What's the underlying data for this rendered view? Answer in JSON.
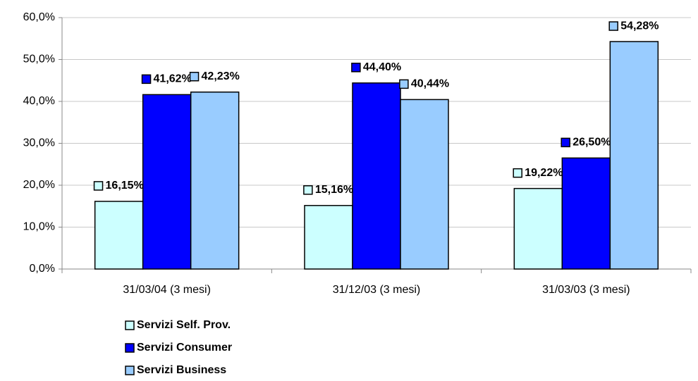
{
  "chart_data": {
    "type": "bar",
    "categories": [
      "31/03/04 (3 mesi)",
      "31/12/03 (3 mesi)",
      "31/03/03 (3 mesi)"
    ],
    "series": [
      {
        "name": "Servizi Self. Prov.",
        "color": "#ccffff",
        "values": [
          16.15,
          15.16,
          19.22
        ],
        "value_labels": [
          "16,15%",
          "15,16%",
          "19,22%"
        ]
      },
      {
        "name": "Servizi Consumer",
        "color": "#0000ff",
        "values": [
          41.62,
          44.4,
          26.5
        ],
        "value_labels": [
          "41,62%",
          "44,40%",
          "26,50%"
        ]
      },
      {
        "name": "Servizi Business",
        "color": "#99ccff",
        "values": [
          42.23,
          40.44,
          54.28
        ],
        "value_labels": [
          "42,23%",
          "40,44%",
          "54,28%"
        ]
      }
    ],
    "ylim": [
      0,
      60
    ],
    "yticks": [
      {
        "value": 0,
        "label": "0,0%"
      },
      {
        "value": 10,
        "label": "10,0%"
      },
      {
        "value": 20,
        "label": "20,0%"
      },
      {
        "value": 30,
        "label": "30,0%"
      },
      {
        "value": 40,
        "label": "40,0%"
      },
      {
        "value": 50,
        "label": "50,0%"
      },
      {
        "value": 60,
        "label": "60,0%"
      }
    ],
    "grid": true,
    "legend": "bottom"
  }
}
